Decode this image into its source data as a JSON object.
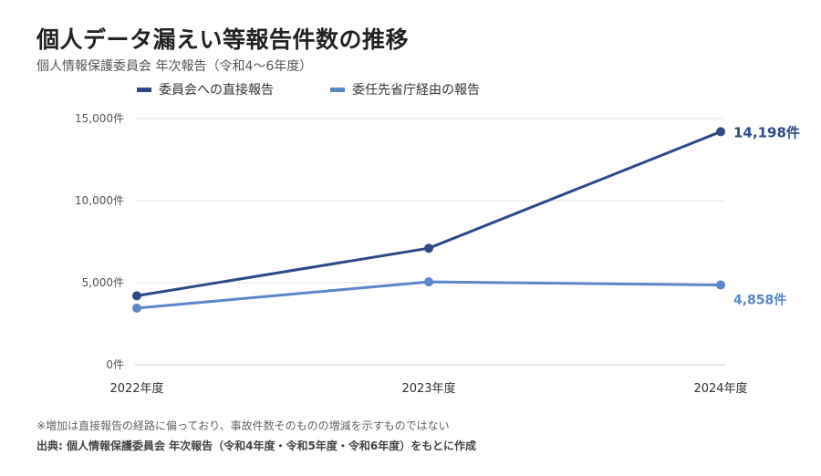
{
  "title": "個人データ漏えい等報告件数の推移",
  "subtitle": "個人情報保護委員会 年次報告（令和4〜6年度）",
  "note": "※増加は直接報告の経路に偏っており、事故件数そのものの増減を示すものではない",
  "source": "出典: 個人情報保護委員会 年次報告（令和4年度・令和5年度・令和6年度）をもとに作成",
  "chart_data": {
    "type": "line",
    "categories": [
      "2022年度",
      "2023年度",
      "2024年度"
    ],
    "yticks": [
      "0件",
      "5,000件",
      "10,000件",
      "15,000件"
    ],
    "ytick_values": [
      0,
      5000,
      10000,
      15000
    ],
    "ylim": [
      0,
      15000
    ],
    "grid": true,
    "legend_position": "top",
    "series": [
      {
        "name": "委員会への直接報告",
        "color": "#2e4a86",
        "values": [
          4200,
          7100,
          14198
        ],
        "end_label": "14,198件"
      },
      {
        "name": "委任先省庁経由の報告",
        "color": "#5b86c8",
        "values": [
          3450,
          5050,
          4858
        ],
        "end_label": "4,858件"
      }
    ]
  }
}
